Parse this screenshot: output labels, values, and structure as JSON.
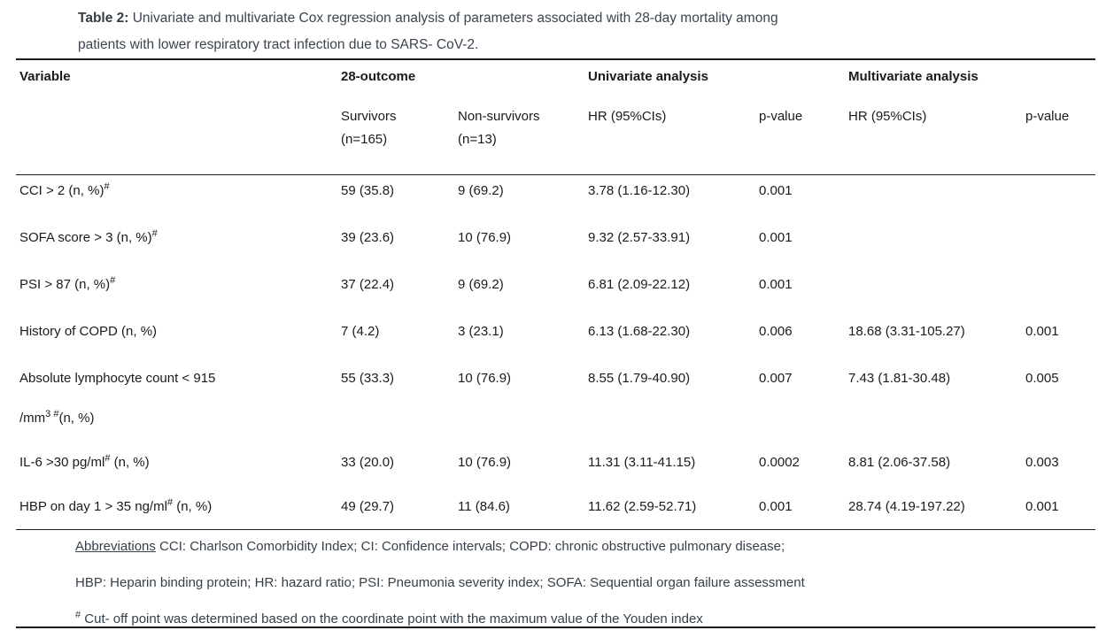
{
  "title": {
    "label": "Table 2:",
    "line1": " Univariate and multivariate Cox regression analysis of parameters associated with 28-day mortality among",
    "line2": "patients with lower respiratory tract infection due to SARS- CoV-2."
  },
  "header": {
    "variable": "Variable",
    "outcome_group": "28-outcome",
    "univariate_group": "Univariate analysis",
    "multivariate_group": "Multivariate analysis",
    "survivors_line1": "Survivors",
    "survivors_line2": "(n=165)",
    "non_survivors_line1": "Non-survivors",
    "non_survivors_line2": "(n=13)",
    "uni_hr": "HR (95%CIs)",
    "uni_p": "p-value",
    "multi_hr": "HR (95%CIs)",
    "multi_p": "p-value"
  },
  "rows": [
    {
      "variable": "CCI > 2 (n, %)",
      "variable_sup": "#",
      "survivors": "59 (35.8)",
      "non_survivors": "9 (69.2)",
      "uni_hr": "3.78 (1.16-12.30)",
      "uni_p": "0.001",
      "multi_hr": "",
      "multi_p": ""
    },
    {
      "variable": "SOFA score > 3 (n, %)",
      "variable_sup": "#",
      "survivors": "39 (23.6)",
      "non_survivors": "10 (76.9)",
      "uni_hr": "9.32 (2.57-33.91)",
      "uni_p": "0.001",
      "multi_hr": "",
      "multi_p": ""
    },
    {
      "variable": "PSI > 87 (n, %)",
      "variable_sup": "#",
      "survivors": "37 (22.4)",
      "non_survivors": "9 (69.2)",
      "uni_hr": "6.81 (2.09-22.12)",
      "uni_p": "0.001",
      "multi_hr": "",
      "multi_p": ""
    },
    {
      "variable": "History of COPD (n, %)",
      "survivors": "7 (4.2)",
      "non_survivors": "3 (23.1)",
      "uni_hr": "6.13 (1.68-22.30)",
      "uni_p": "0.006",
      "multi_hr": "18.68 (3.31-105.27)",
      "multi_p": "0.001"
    },
    {
      "variable": "Absolute lymphocyte count < 915",
      "variable_line2": "/mm",
      "variable_line2_sup": "3 #",
      "variable_line2_rest": "(n, %)",
      "survivors": "55 (33.3)",
      "non_survivors": "10 (76.9)",
      "uni_hr": "8.55 (1.79-40.90)",
      "uni_p": "0.007",
      "multi_hr": "7.43 (1.81-30.48)",
      "multi_p": "0.005"
    },
    {
      "variable": "IL-6 >30 pg/ml",
      "variable_sup": "#",
      "variable_rest": " (n, %)",
      "survivors": "33 (20.0)",
      "non_survivors": "10 (76.9)",
      "uni_hr": "11.31 (3.11-41.15)",
      "uni_p": "0.0002",
      "multi_hr": "8.81 (2.06-37.58)",
      "multi_p": "0.003"
    },
    {
      "variable": "HBP on day 1 > 35 ng/ml",
      "variable_sup": "#",
      "variable_rest": " (n, %)",
      "survivors": "49 (29.7)",
      "non_survivors": "11 (84.6)",
      "uni_hr": "11.62 (2.59-52.71)",
      "uni_p": "0.001",
      "multi_hr": "28.74 (4.19-197.22)",
      "multi_p": "0.001"
    }
  ],
  "footnotes": {
    "abbrev_label": "Abbreviations",
    "abbrev_rest": " CCI: Charlson Comorbidity Index; CI: Confidence intervals; COPD: chronic obstructive pulmonary disease;",
    "abbrev_line2": "HBP: Heparin binding protein; HR: hazard ratio; PSI: Pneumonia severity index; SOFA: Sequential organ failure assessment",
    "cutoff_sup": "#",
    "cutoff_text": " Cut- off point was determined based on the coordinate point with the maximum value of the Youden index"
  }
}
